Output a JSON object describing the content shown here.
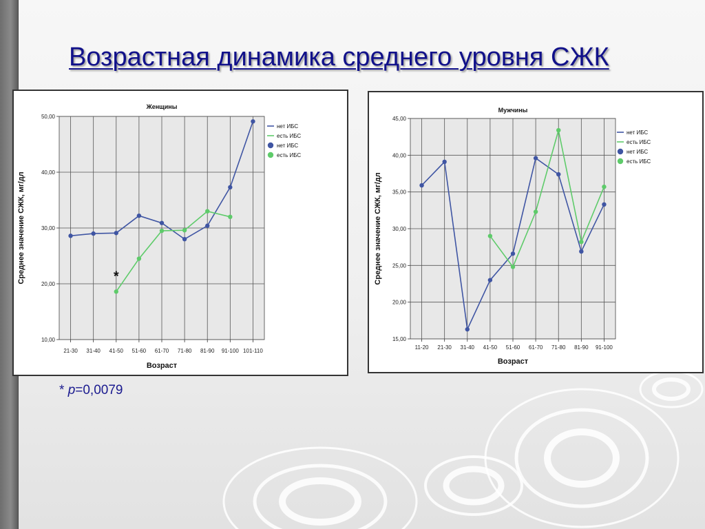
{
  "slide": {
    "title": "Возрастная динамика среднего уровня СЖК",
    "footnote": {
      "prefix": "* ",
      "p_symbol": "p",
      "rest": "=0,0079"
    }
  },
  "colors": {
    "no_ihd": "#3f55a3",
    "ihd": "#5ecb6a",
    "title": "#11118a",
    "grid": "#555555",
    "plot_bg": "#e8e8e8"
  },
  "chart_data": [
    {
      "id": "women",
      "type": "line",
      "title": "Женщины",
      "xlabel": "Возраст",
      "ylabel": "Среднее значение СЖК, мг/дл",
      "categories": [
        "21-30",
        "31-40",
        "41-50",
        "51-60",
        "61-70",
        "71-80",
        "81-90",
        "91-100",
        "101-110"
      ],
      "ylim": [
        10,
        50
      ],
      "yticks": [
        "10,00",
        "20,00",
        "30,00",
        "40,00",
        "50,00"
      ],
      "ytick_values": [
        10,
        20,
        30,
        40,
        50
      ],
      "grid": true,
      "legend_position": "right",
      "legend": [
        "нет ИБС",
        "есть ИБС",
        "нет ИБС",
        "есть ИБС"
      ],
      "series": [
        {
          "name": "нет ИБС",
          "color_key": "no_ihd",
          "values": [
            28.6,
            29.0,
            29.1,
            32.2,
            30.9,
            28.0,
            30.4,
            37.3,
            49.1
          ]
        },
        {
          "name": "есть ИБС",
          "color_key": "ihd",
          "values": [
            null,
            null,
            18.6,
            24.5,
            29.5,
            29.6,
            33.0,
            32.0,
            null
          ]
        }
      ],
      "annotations": [
        {
          "text": "*",
          "category": "41-50"
        }
      ]
    },
    {
      "id": "men",
      "type": "line",
      "title": "Мужчины",
      "xlabel": "Возраст",
      "ylabel": "Среднее значение СЖК, мг/дл",
      "categories": [
        "11-20",
        "21-30",
        "31-40",
        "41-50",
        "51-60",
        "61-70",
        "71-80",
        "81-90",
        "91-100"
      ],
      "ylim": [
        15,
        45
      ],
      "yticks": [
        "15,00",
        "20,00",
        "25,00",
        "30,00",
        "35,00",
        "40,00",
        "45,00"
      ],
      "ytick_values": [
        15,
        20,
        25,
        30,
        35,
        40,
        45
      ],
      "grid": true,
      "legend_position": "right",
      "legend": [
        "нет ИБС",
        "есть ИБС",
        "нет ИБС",
        "есть ИБС"
      ],
      "series": [
        {
          "name": "нет ИБС",
          "color_key": "no_ihd",
          "values": [
            35.9,
            39.1,
            16.3,
            23.0,
            26.6,
            39.6,
            37.4,
            26.9,
            33.3
          ]
        },
        {
          "name": "есть ИБС",
          "color_key": "ihd",
          "values": [
            null,
            null,
            null,
            29.0,
            24.8,
            32.3,
            43.4,
            28.2,
            35.7
          ]
        }
      ],
      "annotations": []
    }
  ]
}
